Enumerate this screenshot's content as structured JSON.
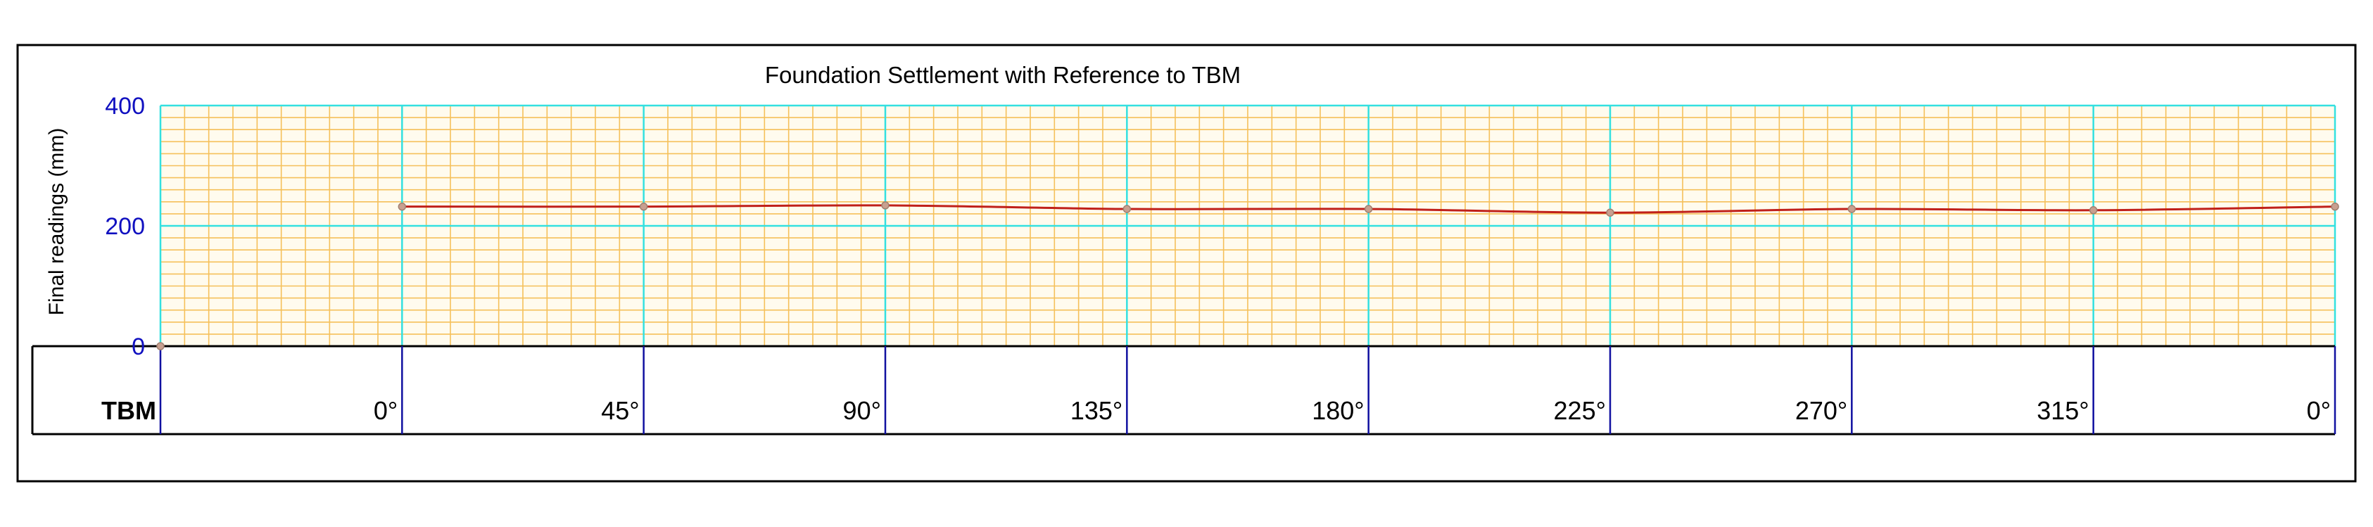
{
  "chart_data": {
    "type": "line",
    "title": "Foundation Settlement with Reference to TBM",
    "ylabel": "Final readings (mm)",
    "xlabel": "",
    "ylim": [
      0,
      400
    ],
    "yticks": [
      "0",
      "200",
      "400"
    ],
    "categories": [
      "TBM",
      "0°",
      "45°",
      "90°",
      "135°",
      "180°",
      "225°",
      "270°",
      "315°",
      "0°"
    ],
    "series": [
      {
        "values": [
          0,
          232,
          232,
          234,
          228,
          228,
          222,
          228,
          226,
          232
        ]
      }
    ],
    "grid": true,
    "colors": {
      "line": "#c0201a",
      "marker": "#c8a090",
      "major_grid": "#33e0e0",
      "minor_grid": "#f5c05a",
      "plot_bg": "#fffbee",
      "ytick_text": "#1010c0",
      "category_divider": "#1010a0"
    }
  }
}
